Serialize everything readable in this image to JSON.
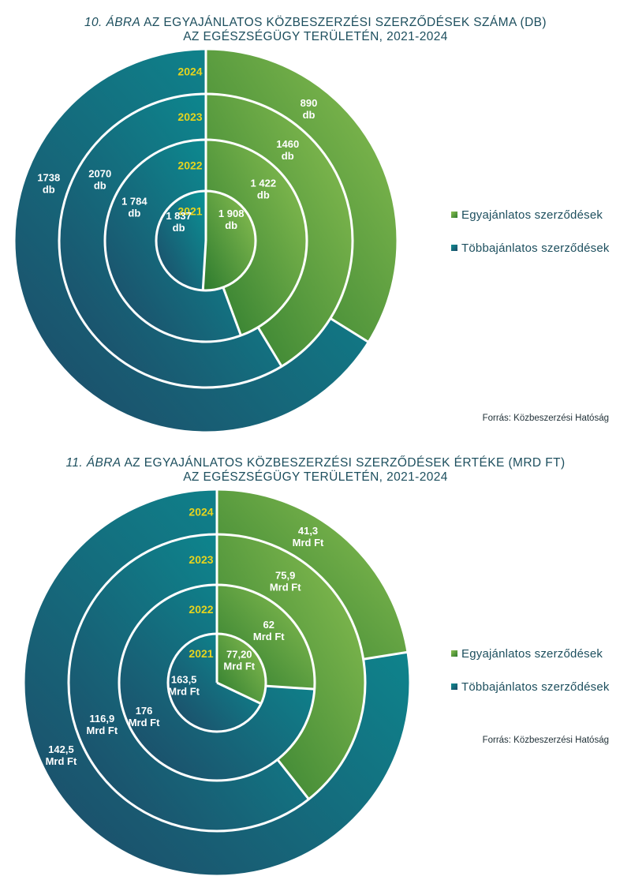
{
  "figures": [
    {
      "title_label": "10. ÁBRA",
      "title_rest": " AZ EGYAJÁNLATOS KÖZBESZERZÉSI SZERZŐDÉSEK SZÁMA (DB)",
      "title_line2": "AZ EGÉSZSÉGÜGY TERÜLETÉN, 2021-2024",
      "legend": [
        "Egyajánlatos szerződések",
        "Többajánlatos szerződések"
      ],
      "source": "Forrás: Közbeszerzési Hatóság"
    },
    {
      "title_label": "11. ÁBRA",
      "title_rest": " AZ EGYAJÁNLATOS KÖZBESZERZÉSI SZERZŐDÉSEK ÉRTÉKE (MRD FT)",
      "title_line2": "AZ EGÉSZSÉGÜGY TERÜLETÉN, 2021-2024",
      "legend": [
        "Egyajánlatos szerződések",
        "Többajánlatos szerződések"
      ],
      "source": "Forrás: Közbeszerzési Hatóság"
    }
  ],
  "chart_data": [
    {
      "type": "pie",
      "subtype": "nested-donut",
      "title": "10. ÁBRA AZ EGYAJÁNLATOS KÖZBESZERZÉSI SZERZŐDÉSEK SZÁMA (DB) AZ EGÉSZSÉGÜGY TERÜLETÉN, 2021-2024",
      "rings": [
        "2021",
        "2022",
        "2023",
        "2024"
      ],
      "series": [
        {
          "name": "Egyajánlatos szerződések",
          "values": [
            1908,
            1422,
            1460,
            890
          ],
          "labels": [
            "1 908\ndb",
            "1 422\ndb",
            "1460\ndb",
            "890\ndb"
          ]
        },
        {
          "name": "Többajánlatos szerződések",
          "values": [
            1837,
            1784,
            2070,
            1738
          ],
          "labels": [
            "1 837\ndb",
            "1 784\ndb",
            "2070\ndb",
            "1738\ndb"
          ]
        }
      ],
      "colors": {
        "egy": "#6fb04a",
        "tobb": "#137a88",
        "year": "#e6d41e"
      },
      "legend_position": "right"
    },
    {
      "type": "pie",
      "subtype": "nested-donut",
      "title": "11. ÁBRA AZ EGYAJÁNLATOS KÖZBESZERZÉSI SZERZŐDÉSEK ÉRTÉKE (MRD FT) AZ EGÉSZSÉGÜGY TERÜLETÉN, 2021-2024",
      "rings": [
        "2021",
        "2022",
        "2023",
        "2024"
      ],
      "series": [
        {
          "name": "Egyajánlatos szerződések",
          "values": [
            77.2,
            62,
            75.9,
            41.3
          ],
          "labels": [
            "77,20\nMrd Ft",
            "62\nMrd Ft",
            "75,9\nMrd Ft",
            "41,3\nMrd Ft"
          ]
        },
        {
          "name": "Többajánlatos szerződések",
          "values": [
            163.5,
            176,
            116.9,
            142.5
          ],
          "labels": [
            "163,5\nMrd Ft",
            "176\nMrd Ft",
            "116,9\nMrd Ft",
            "142,5\nMrd Ft"
          ]
        }
      ],
      "colors": {
        "egy": "#6fb04a",
        "tobb": "#137a88",
        "year": "#e6d41e"
      },
      "legend_position": "right"
    }
  ]
}
